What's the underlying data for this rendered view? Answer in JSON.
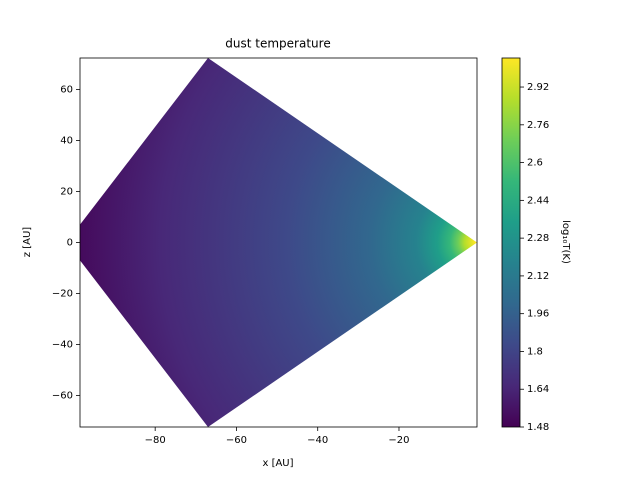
{
  "chart_data": {
    "type": "filled_contour",
    "title": "dust temperature",
    "x_label": "x [AU]",
    "y_label": "z [AU]",
    "xlim": [
      -98.5,
      -0.8
    ],
    "ylim": [
      -72.3,
      72.3
    ],
    "xticks": [
      {
        "value": -80,
        "label": "−80"
      },
      {
        "value": -60,
        "label": "−60"
      },
      {
        "value": -40,
        "label": "−40"
      },
      {
        "value": -20,
        "label": "−20"
      }
    ],
    "yticks": [
      {
        "value": -60,
        "label": "−60"
      },
      {
        "value": -40,
        "label": "−40"
      },
      {
        "value": -20,
        "label": "−20"
      },
      0,
      20,
      40,
      60
    ],
    "region": {
      "x": [
        -98.5,
        -67,
        -0.8,
        -67,
        -98.5
      ],
      "y": [
        7,
        72.3,
        0,
        -72.3,
        -7
      ]
    },
    "colorbar": {
      "label": "log₁₀T(K)",
      "clim": [
        1.48,
        3.043
      ],
      "ticks": [
        1.48,
        1.64,
        1.8,
        1.96,
        2.12,
        2.28,
        2.44,
        2.6,
        2.76,
        2.92
      ],
      "colormap": [
        "#440154",
        "#482878",
        "#3e4989",
        "#31688e",
        "#26828e",
        "#1f9e89",
        "#35b779",
        "#6ece58",
        "#b5de2b",
        "#fde725"
      ]
    }
  }
}
